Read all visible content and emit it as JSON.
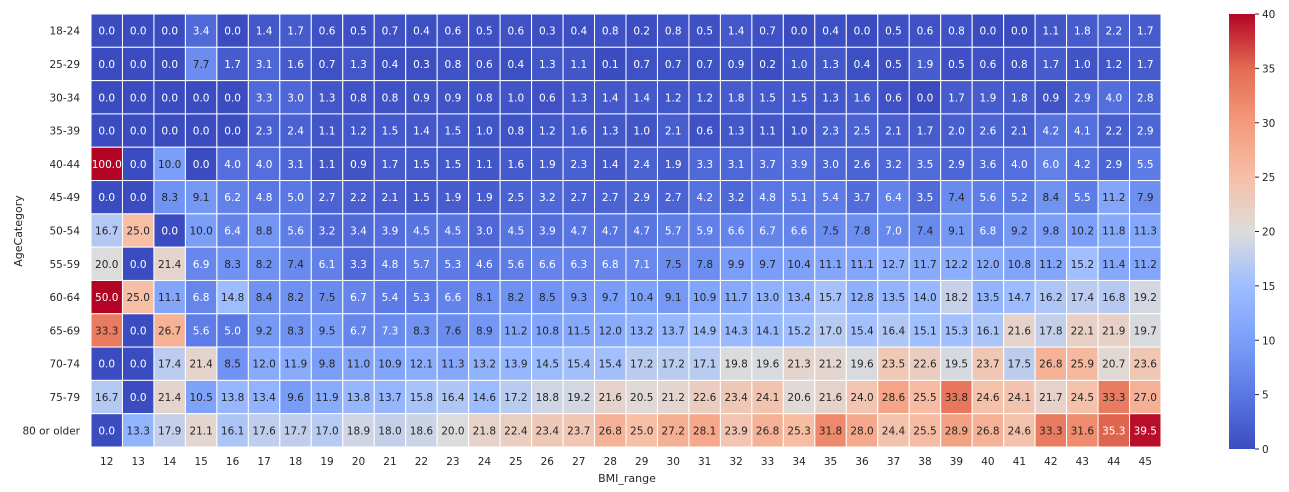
{
  "chart_data": {
    "type": "heatmap",
    "title": "",
    "xlabel": "BMI_range",
    "ylabel": "AgeCategory",
    "x": [
      "12",
      "13",
      "14",
      "15",
      "16",
      "17",
      "18",
      "19",
      "20",
      "21",
      "22",
      "23",
      "24",
      "25",
      "26",
      "27",
      "28",
      "29",
      "30",
      "31",
      "32",
      "33",
      "34",
      "35",
      "36",
      "37",
      "38",
      "39",
      "40",
      "41",
      "42",
      "43",
      "44",
      "45"
    ],
    "y": [
      "18-24",
      "25-29",
      "30-34",
      "35-39",
      "40-44",
      "45-49",
      "50-54",
      "55-59",
      "60-64",
      "65-69",
      "70-74",
      "75-79",
      "80 or older"
    ],
    "values": [
      [
        0.0,
        0.0,
        0.0,
        3.4,
        0.0,
        1.4,
        1.7,
        0.6,
        0.5,
        0.7,
        0.4,
        0.6,
        0.5,
        0.6,
        0.3,
        0.4,
        0.8,
        0.2,
        0.8,
        0.5,
        1.4,
        0.7,
        0.0,
        0.4,
        0.0,
        0.5,
        0.6,
        0.8,
        0.0,
        0.0,
        1.1,
        1.8,
        2.2,
        1.7
      ],
      [
        0.0,
        0.0,
        0.0,
        7.7,
        1.7,
        3.1,
        1.6,
        0.7,
        1.3,
        0.4,
        0.3,
        0.8,
        0.6,
        0.4,
        1.3,
        1.1,
        0.1,
        0.7,
        0.7,
        0.7,
        0.9,
        0.2,
        1.0,
        1.3,
        0.4,
        0.5,
        1.9,
        0.5,
        0.6,
        0.8,
        1.7,
        1.0,
        1.2,
        1.7
      ],
      [
        0.0,
        0.0,
        0.0,
        0.0,
        0.0,
        3.3,
        3.0,
        1.3,
        0.8,
        0.8,
        0.9,
        0.9,
        0.8,
        1.0,
        0.6,
        1.3,
        1.4,
        1.4,
        1.2,
        1.2,
        1.8,
        1.5,
        1.5,
        1.3,
        1.6,
        0.6,
        0.0,
        1.7,
        1.9,
        1.8,
        0.9,
        2.9,
        4.0,
        2.8
      ],
      [
        0.0,
        0.0,
        0.0,
        0.0,
        0.0,
        2.3,
        2.4,
        1.1,
        1.2,
        1.5,
        1.4,
        1.5,
        1.0,
        0.8,
        1.2,
        1.6,
        1.3,
        1.0,
        2.1,
        0.6,
        1.3,
        1.1,
        1.0,
        2.3,
        2.5,
        2.1,
        1.7,
        2.0,
        2.6,
        2.1,
        4.2,
        4.1,
        2.2,
        2.9
      ],
      [
        100.0,
        0.0,
        10.0,
        0.0,
        4.0,
        4.0,
        3.1,
        1.1,
        0.9,
        1.7,
        1.5,
        1.5,
        1.1,
        1.6,
        1.9,
        2.3,
        1.4,
        2.4,
        1.9,
        3.3,
        3.1,
        3.7,
        3.9,
        3.0,
        2.6,
        3.2,
        3.5,
        2.9,
        3.6,
        4.0,
        6.0,
        4.2,
        2.9,
        5.5
      ],
      [
        0.0,
        0.0,
        8.3,
        9.1,
        6.2,
        4.8,
        5.0,
        2.7,
        2.2,
        2.1,
        1.5,
        1.9,
        1.9,
        2.5,
        3.2,
        2.7,
        2.7,
        2.9,
        2.7,
        4.2,
        3.2,
        4.8,
        5.1,
        5.4,
        3.7,
        6.4,
        3.5,
        7.4,
        5.6,
        5.2,
        8.4,
        5.5,
        11.2,
        7.9
      ],
      [
        16.7,
        25.0,
        0.0,
        10.0,
        6.4,
        8.8,
        5.6,
        3.2,
        3.4,
        3.9,
        4.5,
        4.5,
        3.0,
        4.5,
        3.9,
        4.7,
        4.7,
        4.7,
        5.7,
        5.9,
        6.6,
        6.7,
        6.6,
        7.5,
        7.8,
        7.0,
        7.4,
        9.1,
        6.8,
        9.2,
        9.8,
        10.2,
        11.8,
        11.3
      ],
      [
        20.0,
        0.0,
        21.4,
        6.9,
        8.3,
        8.2,
        7.4,
        6.1,
        3.3,
        4.8,
        5.7,
        5.3,
        4.6,
        5.6,
        6.6,
        6.3,
        6.8,
        7.1,
        7.5,
        7.8,
        9.9,
        9.7,
        10.4,
        11.1,
        11.1,
        12.7,
        11.7,
        12.2,
        12.0,
        10.8,
        11.2,
        15.2,
        11.4,
        11.2
      ],
      [
        50.0,
        25.0,
        11.1,
        6.8,
        14.8,
        8.4,
        8.2,
        7.5,
        6.7,
        5.4,
        5.3,
        6.6,
        8.1,
        8.2,
        8.5,
        9.3,
        9.7,
        10.4,
        9.1,
        10.9,
        11.7,
        13.0,
        13.4,
        15.7,
        12.8,
        13.5,
        14.0,
        18.2,
        13.5,
        14.7,
        16.2,
        17.4,
        16.8,
        19.2
      ],
      [
        33.3,
        0.0,
        26.7,
        5.6,
        5.0,
        9.2,
        8.3,
        9.5,
        6.7,
        7.3,
        8.3,
        7.6,
        8.9,
        11.2,
        10.8,
        11.5,
        12.0,
        13.2,
        13.7,
        14.9,
        14.3,
        14.1,
        15.2,
        17.0,
        15.4,
        16.4,
        15.1,
        15.3,
        16.1,
        21.6,
        17.8,
        22.1,
        21.9,
        19.7
      ],
      [
        0.0,
        0.0,
        17.4,
        21.4,
        8.5,
        12.0,
        11.9,
        9.8,
        11.0,
        10.9,
        12.1,
        11.3,
        13.2,
        13.9,
        14.5,
        15.4,
        15.4,
        17.2,
        17.2,
        17.1,
        19.8,
        19.6,
        21.3,
        21.2,
        19.6,
        23.5,
        22.6,
        19.5,
        23.7,
        17.5,
        26.8,
        25.9,
        20.7,
        23.6
      ],
      [
        16.7,
        0.0,
        21.4,
        10.5,
        13.8,
        13.4,
        9.6,
        11.9,
        13.8,
        13.7,
        15.8,
        16.4,
        14.6,
        17.2,
        18.8,
        19.2,
        21.6,
        20.5,
        21.2,
        22.6,
        23.4,
        24.1,
        20.6,
        21.6,
        24.0,
        28.6,
        25.5,
        33.8,
        24.6,
        24.1,
        21.7,
        24.5,
        33.3,
        27.0
      ],
      [
        0.0,
        13.3,
        17.9,
        21.1,
        16.1,
        17.6,
        17.7,
        17.0,
        18.9,
        18.0,
        18.6,
        20.0,
        21.8,
        22.4,
        23.4,
        23.7,
        26.8,
        25.0,
        27.2,
        28.1,
        23.9,
        26.8,
        25.3,
        31.8,
        28.0,
        24.4,
        25.5,
        28.9,
        26.8,
        24.6,
        33.3,
        31.6,
        35.3,
        39.5
      ]
    ],
    "colormap": "coolwarm",
    "vmin": 0,
    "vmax": 40,
    "colorbar_ticks": [
      "0",
      "5",
      "10",
      "15",
      "20",
      "25",
      "30",
      "35",
      "40"
    ],
    "annotated": true,
    "legend": "colorbar-right"
  }
}
